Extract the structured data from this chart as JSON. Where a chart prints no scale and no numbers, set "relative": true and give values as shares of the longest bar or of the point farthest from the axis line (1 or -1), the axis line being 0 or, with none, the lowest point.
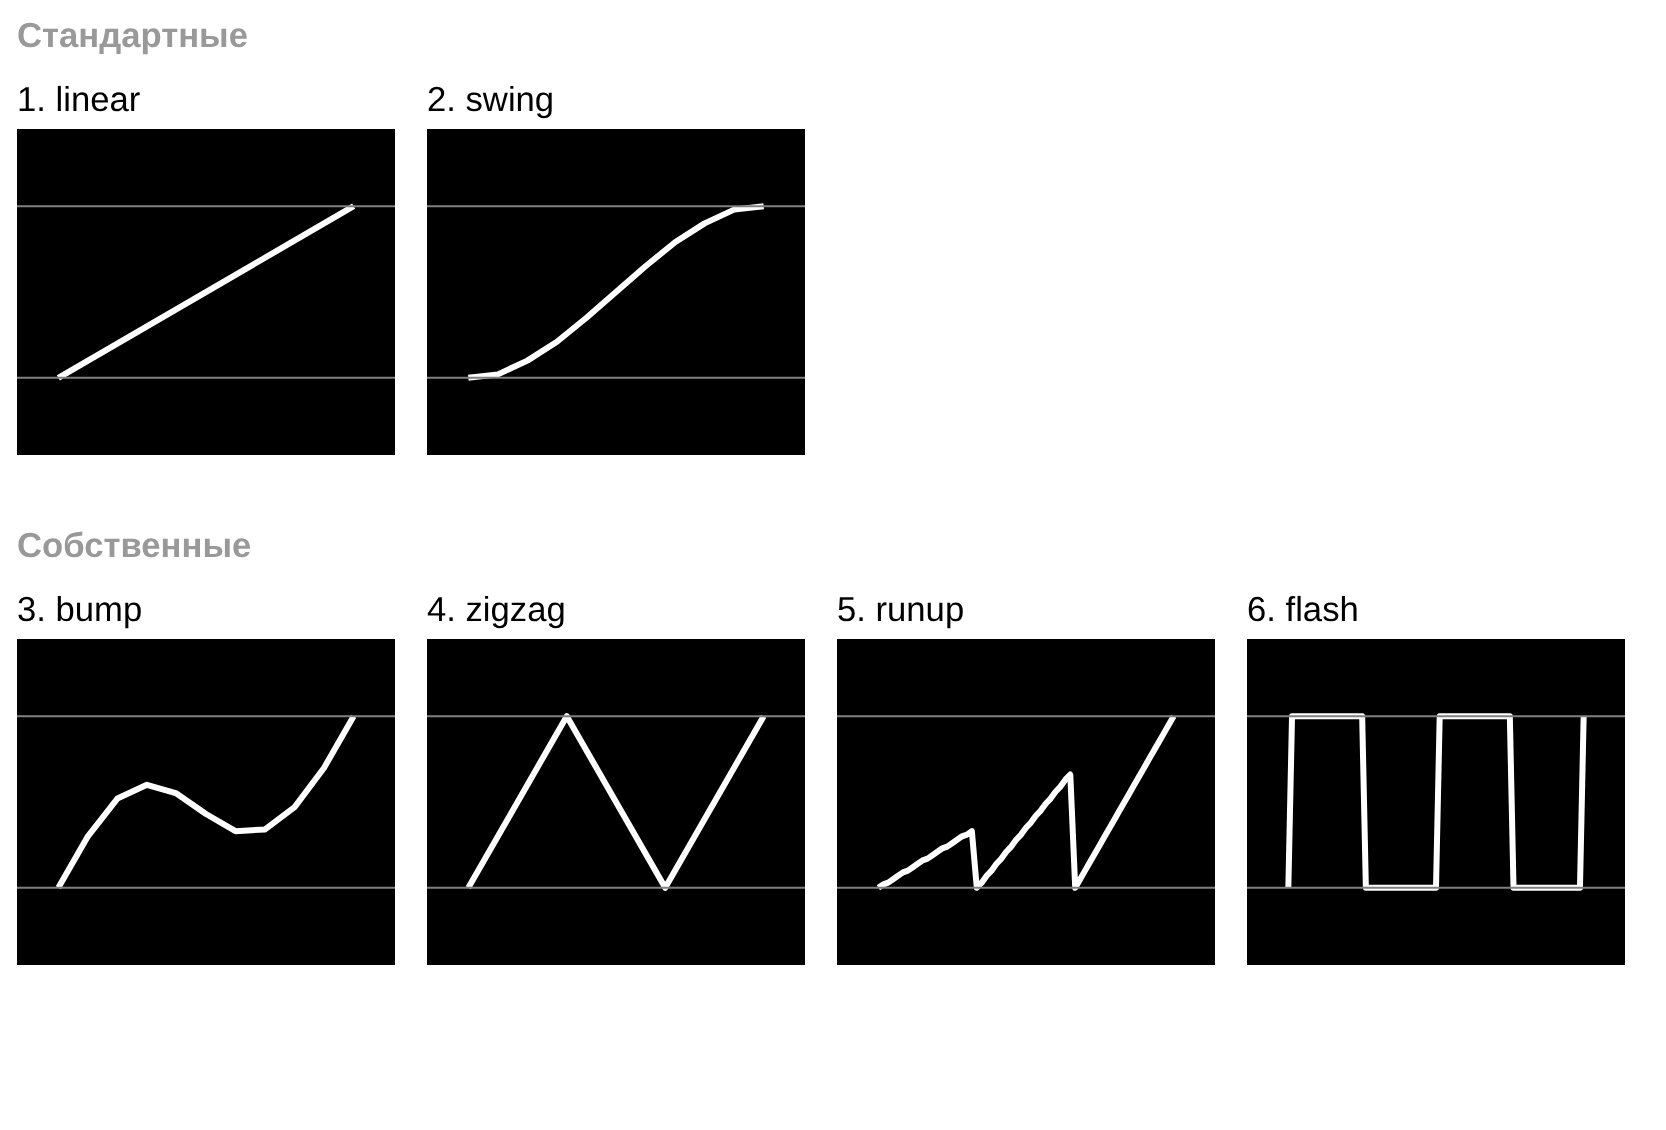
{
  "chart_data": [
    {
      "type": "line",
      "title": "1. linear",
      "annotations": [
        "Стандартные"
      ],
      "relative": true,
      "tick_labels": false,
      "grid": false,
      "categories": [
        null,
        null
      ],
      "ref_lines": [
        {
          "axis": "y",
          "value": 0,
          "color": "#808080"
        },
        {
          "axis": "y",
          "value": 1,
          "color": "#808080"
        }
      ],
      "series": [
        {
          "color": "#ffffff",
          "values": [
            0,
            1
          ]
        }
      ]
    },
    {
      "type": "line",
      "title": "2. swing",
      "relative": true,
      "tick_labels": false,
      "grid": false,
      "categories": [
        null,
        null,
        null,
        null,
        null,
        null,
        null,
        null,
        null,
        null,
        null
      ],
      "ref_lines": [
        {
          "axis": "y",
          "value": 0,
          "color": "#808080"
        },
        {
          "axis": "y",
          "value": 1,
          "color": "#808080"
        }
      ],
      "series": [
        {
          "color": "#ffffff",
          "values": [
            0,
            0.02,
            0.1,
            0.21,
            0.35,
            0.5,
            0.65,
            0.79,
            0.9,
            0.98,
            1
          ]
        }
      ]
    },
    {
      "type": "line",
      "title": "3. bump",
      "annotations": [
        "Собственные"
      ],
      "relative": true,
      "tick_labels": false,
      "grid": false,
      "categories": [
        null,
        null,
        null,
        null,
        null,
        null,
        null,
        null,
        null,
        null,
        null
      ],
      "ref_lines": [
        {
          "axis": "y",
          "value": 0,
          "color": "#808080"
        },
        {
          "axis": "y",
          "value": 1,
          "color": "#808080"
        }
      ],
      "series": [
        {
          "color": "#ffffff",
          "values": [
            0,
            0.3,
            0.52,
            0.6,
            0.55,
            0.43,
            0.33,
            0.34,
            0.47,
            0.7,
            1
          ]
        }
      ]
    },
    {
      "type": "line",
      "title": "4. zigzag",
      "relative": true,
      "tick_labels": false,
      "grid": false,
      "categories": [
        null,
        null,
        null,
        null
      ],
      "ref_lines": [
        {
          "axis": "y",
          "value": 0,
          "color": "#808080"
        },
        {
          "axis": "y",
          "value": 1,
          "color": "#808080"
        }
      ],
      "series": [
        {
          "color": "#ffffff",
          "values": [
            0,
            1,
            0,
            1
          ]
        }
      ]
    },
    {
      "type": "line",
      "title": "5. runup",
      "relative": true,
      "tick_labels": false,
      "grid": false,
      "ref_lines": [
        {
          "axis": "y",
          "value": 0,
          "color": "#808080"
        },
        {
          "axis": "y",
          "value": 1,
          "color": "#808080"
        }
      ],
      "categories": [
        null,
        null,
        null,
        null,
        null,
        null,
        null,
        null,
        null,
        null,
        null,
        null,
        null,
        null,
        null,
        null,
        null,
        null,
        null,
        null,
        null,
        null,
        null,
        null,
        null,
        null,
        null,
        null,
        null,
        null,
        null,
        null,
        null,
        null,
        null,
        null,
        null,
        null,
        null,
        null,
        null,
        null,
        null,
        null,
        null,
        null,
        null,
        null,
        null,
        null,
        null,
        null,
        null,
        null,
        null,
        null,
        null,
        null,
        null,
        null,
        null
      ],
      "series": [
        {
          "color": "#ffffff",
          "values": [
            0,
            0.02,
            0.03,
            0.05,
            0.07,
            0.09,
            0.1,
            0.12,
            0.14,
            0.16,
            0.17,
            0.19,
            0.21,
            0.23,
            0.24,
            0.26,
            0.28,
            0.3,
            0.31,
            0.33,
            0,
            0.03,
            0.07,
            0.1,
            0.14,
            0.17,
            0.21,
            0.24,
            0.28,
            0.31,
            0.35,
            0.38,
            0.42,
            0.45,
            0.49,
            0.52,
            0.56,
            0.59,
            0.63,
            0.66,
            0,
            0.05,
            0.1,
            0.15,
            0.2,
            0.25,
            0.3,
            0.35,
            0.4,
            0.45,
            0.5,
            0.55,
            0.6,
            0.65,
            0.7,
            0.75,
            0.8,
            0.85,
            0.9,
            0.95,
            1
          ]
        }
      ]
    },
    {
      "type": "line",
      "title": "6. flash",
      "relative": true,
      "tick_labels": false,
      "grid": false,
      "ref_lines": [
        {
          "axis": "y",
          "value": 0,
          "color": "#808080"
        },
        {
          "axis": "y",
          "value": 1,
          "color": "#808080"
        }
      ],
      "categories": [
        null,
        null,
        null,
        null,
        null,
        null,
        null,
        null,
        null,
        null,
        null,
        null,
        null,
        null,
        null,
        null,
        null,
        null,
        null,
        null,
        null,
        null,
        null,
        null,
        null,
        null,
        null,
        null,
        null,
        null,
        null,
        null,
        null,
        null,
        null,
        null,
        null,
        null,
        null,
        null,
        null,
        null,
        null,
        null,
        null,
        null,
        null,
        null,
        null,
        null,
        null,
        null,
        null,
        null,
        null,
        null,
        null,
        null,
        null,
        null,
        null,
        null,
        null,
        null,
        null,
        null,
        null,
        null,
        null,
        null,
        null,
        null,
        null,
        null,
        null,
        null,
        null,
        null,
        null,
        null,
        null
      ],
      "series": [
        {
          "color": "#ffffff",
          "values": [
            0,
            1,
            1,
            1,
            1,
            1,
            1,
            1,
            1,
            1,
            1,
            1,
            1,
            1,
            1,
            1,
            1,
            1,
            1,
            1,
            1,
            0,
            0,
            0,
            0,
            0,
            0,
            0,
            0,
            0,
            0,
            0,
            0,
            0,
            0,
            0,
            0,
            0,
            0,
            0,
            0,
            1,
            1,
            1,
            1,
            1,
            1,
            1,
            1,
            1,
            1,
            1,
            1,
            1,
            1,
            1,
            1,
            1,
            1,
            1,
            1,
            0,
            0,
            0,
            0,
            0,
            0,
            0,
            0,
            0,
            0,
            0,
            0,
            0,
            0,
            0,
            0,
            0,
            0,
            0,
            1
          ]
        }
      ]
    }
  ]
}
